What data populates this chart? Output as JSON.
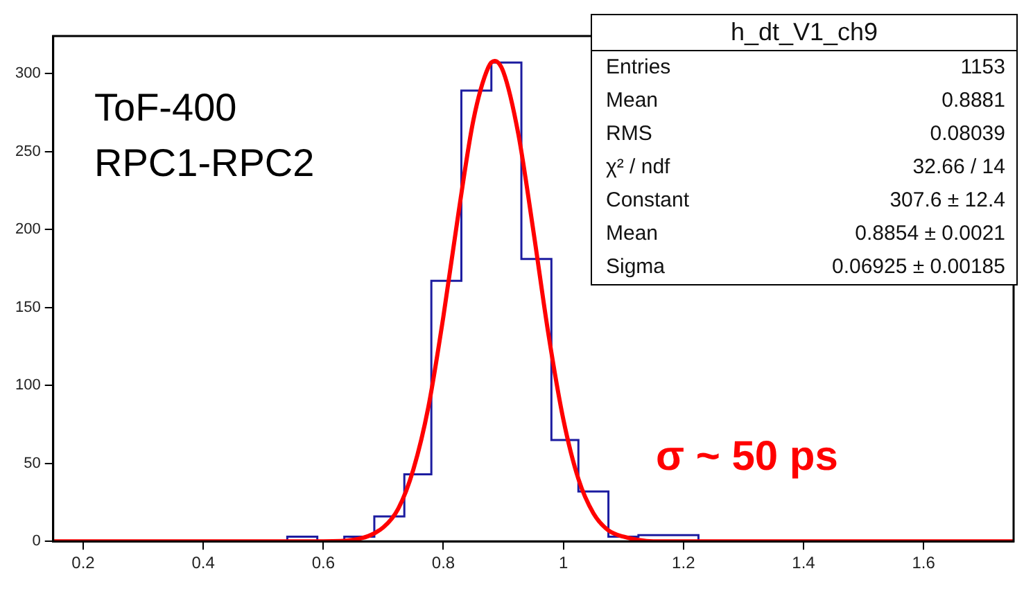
{
  "chart_data": {
    "type": "histogram",
    "title": "h_dt_V1_ch9",
    "bins": [
      0.54,
      0.59,
      0.635,
      0.685,
      0.735,
      0.78,
      0.83,
      0.88,
      0.93,
      0.98,
      1.025,
      1.075,
      1.125,
      1.175,
      1.225
    ],
    "values": [
      3,
      0,
      3,
      16,
      43,
      167,
      289,
      307,
      181,
      65,
      32,
      3,
      4,
      4
    ],
    "color": "#1c1ca0",
    "series": [
      {
        "type": "line",
        "color": "#ff0000",
        "x": [
          0.15,
          0.6,
          0.65,
          0.7,
          0.725,
          0.75,
          0.775,
          0.8,
          0.825,
          0.85,
          0.875,
          0.8854,
          0.9,
          0.925,
          0.95,
          0.975,
          1.0,
          1.025,
          1.05,
          1.075,
          1.1,
          1.15,
          1.75
        ],
        "values": [
          0,
          0,
          1,
          9,
          21,
          46,
          86,
          144,
          210,
          270,
          304,
          308,
          301,
          261,
          199,
          133,
          78,
          40,
          18,
          7,
          3,
          0,
          0
        ]
      }
    ],
    "xlim": [
      0.15,
      1.75
    ],
    "xticks": [
      0.2,
      0.4,
      0.6,
      0.8,
      1,
      1.2,
      1.4,
      1.6
    ],
    "ylim": [
      0,
      324
    ],
    "yticks": [
      0,
      50,
      100,
      150,
      200,
      250,
      300
    ],
    "grid": false,
    "legend": false,
    "annotations": [
      "ToF-400",
      "RPC1-RPC2",
      "σ ~ 50 ps",
      "Entries",
      "1153",
      "Mean",
      "0.8881",
      "RMS",
      "0.08039",
      "χ² / ndf",
      "32.66 / 14",
      "Constant",
      "307.6 ± 12.4",
      "Mean",
      "0.8854 ± 0.0021",
      "Sigma",
      "0.06925 ± 0.00185"
    ]
  }
}
